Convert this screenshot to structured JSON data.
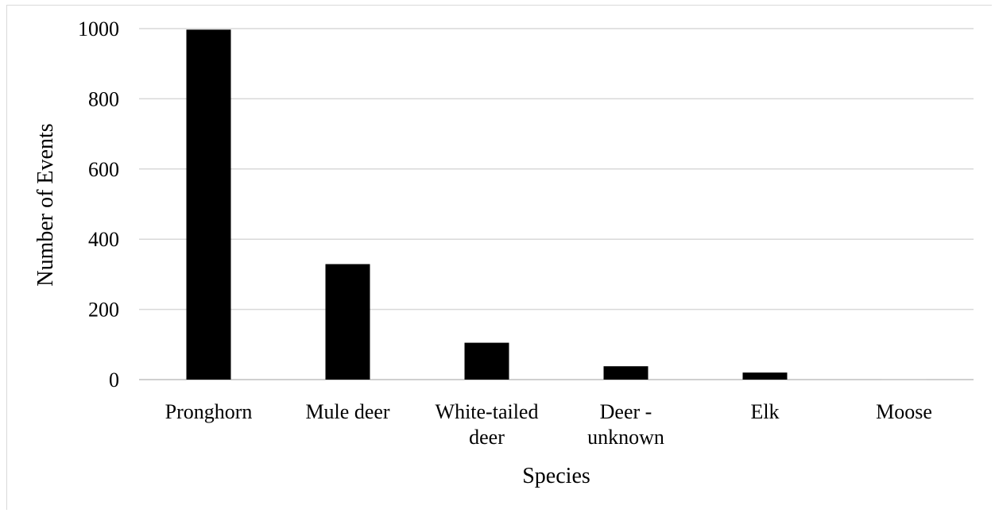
{
  "chart_data": {
    "type": "bar",
    "title": "",
    "xlabel": "Species",
    "ylabel": "Number of Events",
    "categories": [
      [
        "Pronghorn"
      ],
      [
        "Mule deer"
      ],
      [
        "White-tailed",
        "deer"
      ],
      [
        "Deer -",
        "unknown"
      ],
      [
        "Elk"
      ],
      [
        "Moose"
      ]
    ],
    "values": [
      997,
      329,
      105,
      38,
      20,
      2
    ],
    "ylim": [
      0,
      1000
    ],
    "yticks": [
      0,
      200,
      400,
      600,
      800,
      1000
    ],
    "grid": true,
    "legend": "none",
    "colors": {
      "bar": "#000000",
      "grid": "#d9d9d9",
      "axis": "#bfbfbf"
    }
  }
}
